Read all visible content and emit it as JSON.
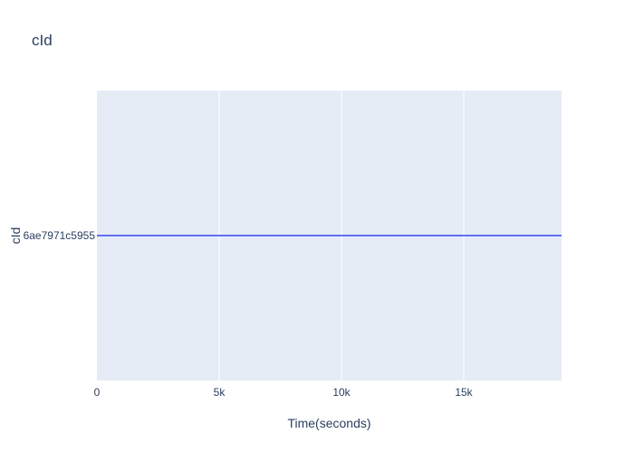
{
  "chart_data": {
    "type": "line",
    "title": "cId",
    "xlabel": "Time(seconds)",
    "ylabel": "cId",
    "xlim": [
      0,
      19000
    ],
    "x_ticks": [
      0,
      5000,
      10000,
      15000
    ],
    "x_tick_labels": [
      "0",
      "5k",
      "10k",
      "15k"
    ],
    "y_categories": [
      "6ae7971c5955"
    ],
    "series": [
      {
        "x": [
          0,
          19000
        ],
        "y": [
          "6ae7971c5955",
          "6ae7971c5955"
        ],
        "color": "#636efa"
      }
    ],
    "grid": true,
    "plot_background": "#e5ecf6",
    "gridline_color": "#ffffff",
    "text_color": "#2a3f5f"
  }
}
